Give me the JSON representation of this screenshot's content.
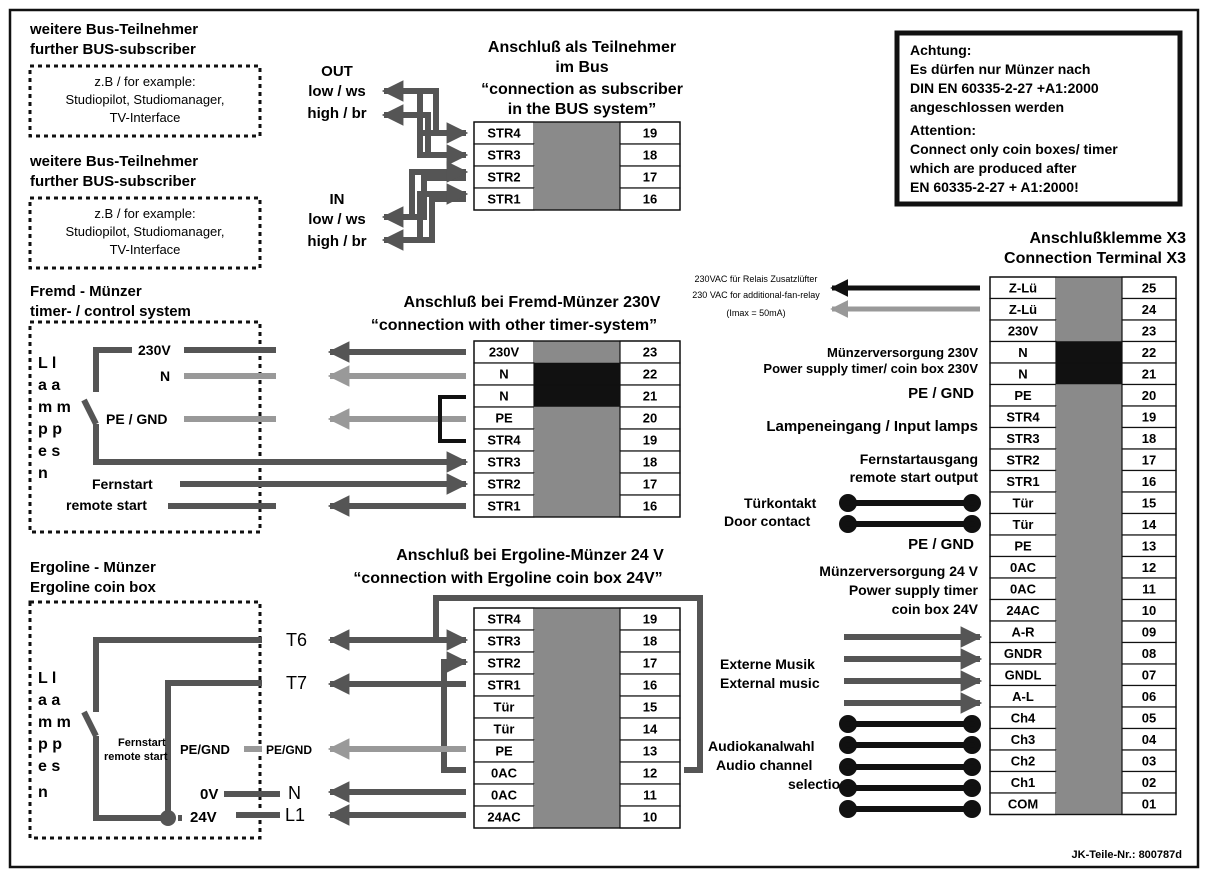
{
  "labels": {
    "bus1_title_de": "weitere Bus-Teilnehmer",
    "bus1_title_en": "further BUS-subscriber",
    "bus1_box": [
      "z.B / for example:",
      "Studiopilot, Studiomanager,",
      "TV-Interface"
    ],
    "bus2_title_de": "weitere Bus-Teilnehmer",
    "bus2_title_en": "further BUS-subscriber",
    "bus2_box": [
      "z.B / for example:",
      "Studiopilot, Studiomanager,",
      "TV-Interface"
    ],
    "out_label": "OUT",
    "out_low": "low / ws",
    "out_high": "high / br",
    "in_label": "IN",
    "in_low": "low / ws",
    "in_high": "high / br",
    "bus_heading": [
      "Anschluß als Teilnehmer",
      "im Bus",
      "“connection as subscriber",
      "in the BUS system”"
    ],
    "fremd_title_de": "Fremd - Münzer",
    "fremd_title_en": "timer- / control system",
    "fremd_heading_de": "Anschluß bei Fremd-Münzer 230V",
    "fremd_heading_en": "“connection with other timer-system”",
    "fremd_230v": "230V",
    "fremd_n": "N",
    "fremd_pe": "PE / GND",
    "fremd_start_de": "Fernstart",
    "fremd_start_en": "remote start",
    "lamps_letters": [
      "L l",
      "a a",
      "m m",
      "p p",
      "e s",
      "n"
    ],
    "ergo_title_de": "Ergoline - Münzer",
    "ergo_title_en": "Ergoline  coin box",
    "ergo_heading_de": "Anschluß bei Ergoline-Münzer 24 V",
    "ergo_heading_en": "“connection with Ergoline coin box 24V”",
    "ergo_t6": "T6",
    "ergo_t7": "T7",
    "ergo_fern_de": "Fernstart",
    "ergo_fern_en": "remote start",
    "ergo_pe_left": "PE/GND",
    "ergo_pe_right": "PE/GND",
    "ergo_0v": "0V",
    "ergo_24v": "24V",
    "ergo_n": "N",
    "ergo_l1": "L1",
    "warning": [
      "Achtung:",
      "Es dürfen nur Münzer nach",
      "DIN EN 60335-2-27 +A1:2000",
      "angeschlossen werden",
      "Attention:",
      "Connect only coin boxes/ timer",
      "which are produced after",
      "EN 60335-2-27 + A1:2000!"
    ],
    "x3_title_de": "Anschlußklemme X3",
    "x3_title_en": "Connection Terminal X3",
    "x3_relay": [
      "230VAC für Relais Zusatzlüfter",
      "230 VAC for additional-fan-relay",
      "(Imax = 50mA)"
    ],
    "x3_supply230": [
      "Münzerversorgung 230V",
      "Power supply timer/ coin box 230V"
    ],
    "x3_pe_a": "PE / GND",
    "x3_lamp": "Lampeneingang / Input lamps",
    "x3_remote": [
      "Fernstartausgang",
      "remote start output"
    ],
    "x3_door": [
      "Türkontakt",
      "Door contact"
    ],
    "x3_pe_b": "PE / GND",
    "x3_supply24": [
      "Münzerversorgung 24 V",
      "Power supply timer",
      "coin box 24V"
    ],
    "x3_music": [
      "Externe Musik",
      "External music"
    ],
    "x3_audio": [
      "Audiokanalwahl",
      "Audio channel",
      "selection"
    ],
    "part_no": "JK-Teile-Nr.: 800787d"
  },
  "tables": {
    "bus": [
      [
        "STR4",
        "19"
      ],
      [
        "STR3",
        "18"
      ],
      [
        "STR2",
        "17"
      ],
      [
        "STR1",
        "16"
      ]
    ],
    "fremd": [
      [
        "230V",
        "23"
      ],
      [
        "N",
        "22"
      ],
      [
        "N",
        "21"
      ],
      [
        "PE",
        "20"
      ],
      [
        "STR4",
        "19"
      ],
      [
        "STR3",
        "18"
      ],
      [
        "STR2",
        "17"
      ],
      [
        "STR1",
        "16"
      ]
    ],
    "ergo": [
      [
        "STR4",
        "19"
      ],
      [
        "STR3",
        "18"
      ],
      [
        "STR2",
        "17"
      ],
      [
        "STR1",
        "16"
      ],
      [
        "Tür",
        "15"
      ],
      [
        "Tür",
        "14"
      ],
      [
        "PE",
        "13"
      ],
      [
        "0AC",
        "12"
      ],
      [
        "0AC",
        "11"
      ],
      [
        "24AC",
        "10"
      ]
    ],
    "x3": [
      [
        "Z-Lü",
        "25"
      ],
      [
        "Z-Lü",
        "24"
      ],
      [
        "230V",
        "23"
      ],
      [
        "N",
        "22"
      ],
      [
        "N",
        "21"
      ],
      [
        "PE",
        "20"
      ],
      [
        "STR4",
        "19"
      ],
      [
        "STR3",
        "18"
      ],
      [
        "STR2",
        "17"
      ],
      [
        "STR1",
        "16"
      ],
      [
        "Tür",
        "15"
      ],
      [
        "Tür",
        "14"
      ],
      [
        "PE",
        "13"
      ],
      [
        "0AC",
        "12"
      ],
      [
        "0AC",
        "11"
      ],
      [
        "24AC",
        "10"
      ],
      [
        "A-R",
        "09"
      ],
      [
        "GNDR",
        "08"
      ],
      [
        "GNDL",
        "07"
      ],
      [
        "A-L",
        "06"
      ],
      [
        "Ch4",
        "05"
      ],
      [
        "Ch3",
        "04"
      ],
      [
        "Ch2",
        "03"
      ],
      [
        "Ch1",
        "02"
      ],
      [
        "COM",
        "01"
      ]
    ]
  },
  "colors": {
    "line": "#111111",
    "gray_line": "#888888",
    "cell_gray": "#8a8a8a",
    "cell_black": "#111111",
    "paper": "#ffffff"
  }
}
